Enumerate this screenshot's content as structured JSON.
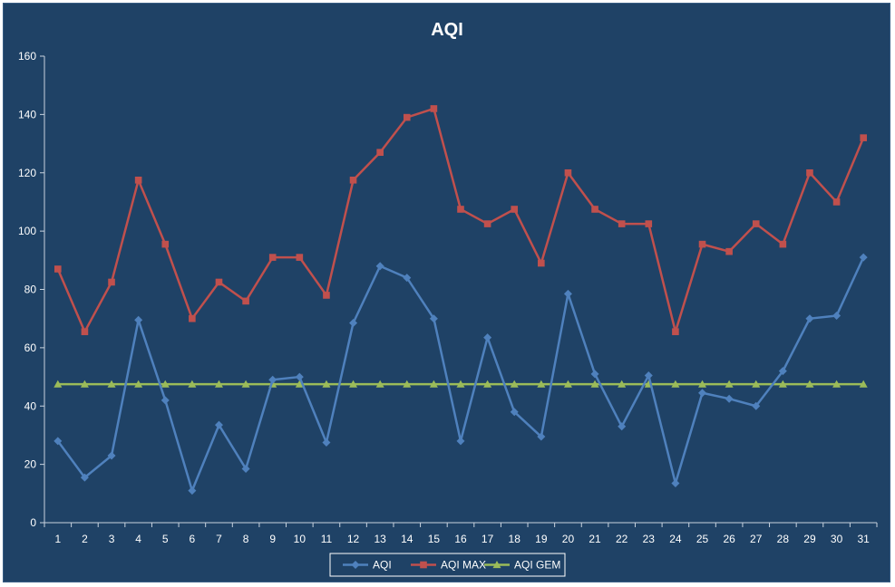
{
  "chart_data": {
    "type": "line",
    "title": "AQI",
    "xlabel": "",
    "ylabel": "",
    "x": [
      1,
      2,
      3,
      4,
      5,
      6,
      7,
      8,
      9,
      10,
      11,
      12,
      13,
      14,
      15,
      16,
      17,
      18,
      19,
      20,
      21,
      22,
      23,
      24,
      25,
      26,
      27,
      28,
      29,
      30,
      31
    ],
    "ylim": [
      0,
      160
    ],
    "yticks": [
      0,
      20,
      40,
      60,
      80,
      100,
      120,
      140,
      160
    ],
    "grid": false,
    "legend_position": "bottom",
    "series": [
      {
        "name": "AQI",
        "color": "#4f81bd",
        "marker": "diamond",
        "values": [
          28,
          15.5,
          23,
          69.5,
          42,
          11,
          33.5,
          18.5,
          49,
          50,
          27.5,
          68.5,
          88,
          84,
          70,
          28,
          63.5,
          38,
          29.5,
          78.5,
          51,
          33,
          50.5,
          13.5,
          44.5,
          42.5,
          40,
          52,
          70,
          71,
          91
        ]
      },
      {
        "name": "AQI MAX",
        "color": "#c0504d",
        "marker": "square",
        "values": [
          87,
          65.5,
          82.5,
          117.5,
          95.5,
          70,
          82.5,
          76,
          91,
          91,
          78,
          117.5,
          127,
          139,
          142,
          107.5,
          102.5,
          107.5,
          89,
          120,
          107.5,
          102.5,
          102.5,
          65.5,
          95.5,
          93,
          102.5,
          95.5,
          120,
          110,
          132
        ]
      },
      {
        "name": "AQI GEM",
        "color": "#9bbb59",
        "marker": "triangle",
        "values": [
          47.5,
          47.5,
          47.5,
          47.5,
          47.5,
          47.5,
          47.5,
          47.5,
          47.5,
          47.5,
          47.5,
          47.5,
          47.5,
          47.5,
          47.5,
          47.5,
          47.5,
          47.5,
          47.5,
          47.5,
          47.5,
          47.5,
          47.5,
          47.5,
          47.5,
          47.5,
          47.5,
          47.5,
          47.5,
          47.5,
          47.5
        ]
      }
    ]
  },
  "colors": {
    "background": "#1f4266",
    "axis": "#c8d3df",
    "text": "#ffffff",
    "legend_box": "#ffffff"
  }
}
